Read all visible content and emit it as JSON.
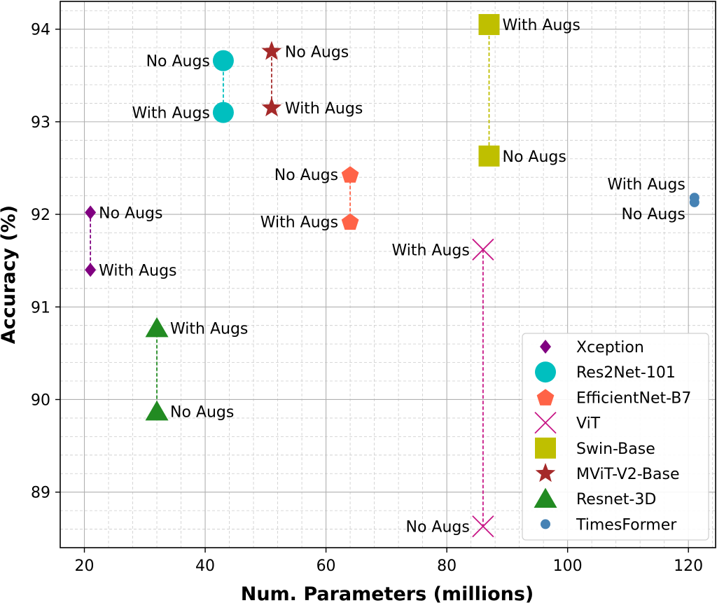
{
  "chart_data": {
    "type": "scatter",
    "title": "",
    "xlabel": "Num. Parameters (millions)",
    "ylabel": "Accuracy (%)",
    "xlim": [
      16,
      124.5
    ],
    "ylim": [
      88.4,
      94.3
    ],
    "xticks": [
      20,
      40,
      60,
      80,
      100,
      120
    ],
    "yticks": [
      89,
      90,
      91,
      92,
      93,
      94
    ],
    "grid": true,
    "minor_grid": true,
    "legend_position": "lower-right",
    "series": [
      {
        "name": "Xception",
        "marker": "diamond",
        "color": "#800080",
        "size": 8,
        "points": [
          {
            "x": 21,
            "y": 92.02,
            "label": "No Augs"
          },
          {
            "x": 21,
            "y": 91.4,
            "label": "With Augs"
          }
        ]
      },
      {
        "name": "Res2Net-101",
        "marker": "circle",
        "color": "#00BFBF",
        "size": 15,
        "points": [
          {
            "x": 43,
            "y": 93.66,
            "label": "No Augs"
          },
          {
            "x": 43,
            "y": 93.1,
            "label": "With Augs"
          }
        ]
      },
      {
        "name": "EfficientNet-B7",
        "marker": "pentagon",
        "color": "#FF6347",
        "size": 13,
        "points": [
          {
            "x": 64,
            "y": 92.43,
            "label": "No Augs"
          },
          {
            "x": 64,
            "y": 91.92,
            "label": "With Augs"
          }
        ]
      },
      {
        "name": "ViT",
        "marker": "x",
        "color": "#C71585",
        "size": 15,
        "points": [
          {
            "x": 86,
            "y": 91.62,
            "label": "With Augs"
          },
          {
            "x": 86,
            "y": 88.63,
            "label": "No Augs"
          }
        ]
      },
      {
        "name": "Swin-Base",
        "marker": "square",
        "color": "#BFBF00",
        "size": 15,
        "points": [
          {
            "x": 87,
            "y": 94.05,
            "label": "With Augs"
          },
          {
            "x": 87,
            "y": 92.63,
            "label": "No Augs"
          }
        ]
      },
      {
        "name": "MViT-V2-Base",
        "marker": "star",
        "color": "#A52A2A",
        "size": 15,
        "points": [
          {
            "x": 51,
            "y": 93.76,
            "label": "No Augs"
          },
          {
            "x": 51,
            "y": 93.15,
            "label": "With Augs"
          }
        ]
      },
      {
        "name": "Resnet-3D",
        "marker": "triangle",
        "color": "#228B22",
        "size": 15,
        "points": [
          {
            "x": 32,
            "y": 90.77,
            "label": "With Augs"
          },
          {
            "x": 32,
            "y": 89.87,
            "label": "No Augs"
          }
        ]
      },
      {
        "name": "TimesFormer",
        "marker": "circle",
        "color": "#4682B4",
        "size": 7,
        "points": [
          {
            "x": 121,
            "y": 92.18,
            "label": "With Augs"
          },
          {
            "x": 121,
            "y": 92.13,
            "label": "No Augs"
          }
        ]
      }
    ]
  }
}
